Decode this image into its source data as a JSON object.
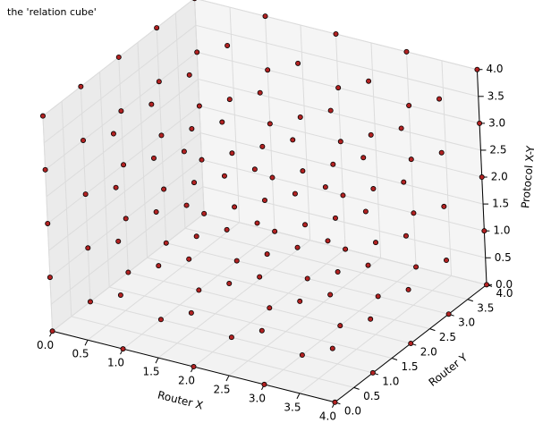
{
  "chart_data": {
    "type": "scatter3d",
    "title": "the 'relation cube'",
    "xlabel": "Router X",
    "ylabel": "Router Y",
    "zlabel": "Protocol X-Y",
    "color": "#b22222",
    "edgecolor": "#000000",
    "xlim": [
      0,
      4
    ],
    "ylim": [
      0,
      4
    ],
    "zlim": [
      0,
      4
    ],
    "xticks": [
      {
        "value": 0,
        "label": "0.0"
      },
      {
        "value": 0.5,
        "label": "0.5"
      },
      {
        "value": 1,
        "label": "1.0"
      },
      {
        "value": 1.5,
        "label": "1.5"
      },
      {
        "value": 2,
        "label": "2.0"
      },
      {
        "value": 2.5,
        "label": "2.5"
      },
      {
        "value": 3,
        "label": "3.0"
      },
      {
        "value": 3.5,
        "label": "3.5"
      },
      {
        "value": 4,
        "label": "4.0"
      }
    ],
    "yticks": [
      {
        "value": 0,
        "label": "0.0"
      },
      {
        "value": 0.5,
        "label": "0.5"
      },
      {
        "value": 1,
        "label": "1.0"
      },
      {
        "value": 1.5,
        "label": "1.5"
      },
      {
        "value": 2,
        "label": "2.0"
      },
      {
        "value": 2.5,
        "label": "2.5"
      },
      {
        "value": 3,
        "label": "3.0"
      },
      {
        "value": 3.5,
        "label": "3.5"
      },
      {
        "value": 4,
        "label": "4.0"
      }
    ],
    "zticks": [
      {
        "value": 0,
        "label": "0.0"
      },
      {
        "value": 0.5,
        "label": "0.5"
      },
      {
        "value": 1,
        "label": "1.0"
      },
      {
        "value": 1.5,
        "label": "1.5"
      },
      {
        "value": 2,
        "label": "2.0"
      },
      {
        "value": 2.5,
        "label": "2.5"
      },
      {
        "value": 3,
        "label": "3.0"
      },
      {
        "value": 3.5,
        "label": "3.5"
      },
      {
        "value": 4,
        "label": "4.0"
      }
    ],
    "grid": true,
    "x": [
      0,
      0,
      0,
      0,
      0,
      0,
      0,
      0,
      0,
      0,
      0,
      0,
      0,
      0,
      0,
      0,
      0,
      0,
      0,
      0,
      0,
      0,
      0,
      0,
      0,
      1,
      1,
      1,
      1,
      1,
      1,
      1,
      1,
      1,
      1,
      1,
      1,
      1,
      1,
      1,
      1,
      1,
      1,
      1,
      1,
      1,
      1,
      1,
      1,
      1,
      2,
      2,
      2,
      2,
      2,
      2,
      2,
      2,
      2,
      2,
      2,
      2,
      2,
      2,
      2,
      2,
      2,
      2,
      2,
      2,
      2,
      2,
      2,
      2,
      2,
      3,
      3,
      3,
      3,
      3,
      3,
      3,
      3,
      3,
      3,
      3,
      3,
      3,
      3,
      3,
      3,
      3,
      3,
      3,
      3,
      3,
      3,
      3,
      3,
      3,
      4,
      4,
      4,
      4,
      4,
      4,
      4,
      4,
      4,
      4,
      4,
      4,
      4,
      4,
      4,
      4,
      4,
      4,
      4,
      4,
      4,
      4,
      4,
      4,
      4
    ],
    "y": [
      0,
      0,
      0,
      0,
      0,
      1,
      1,
      1,
      1,
      1,
      2,
      2,
      2,
      2,
      2,
      3,
      3,
      3,
      3,
      3,
      4,
      4,
      4,
      4,
      4,
      0,
      0,
      0,
      0,
      0,
      1,
      1,
      1,
      1,
      1,
      2,
      2,
      2,
      2,
      2,
      3,
      3,
      3,
      3,
      3,
      4,
      4,
      4,
      4,
      4,
      0,
      0,
      0,
      0,
      0,
      1,
      1,
      1,
      1,
      1,
      2,
      2,
      2,
      2,
      2,
      3,
      3,
      3,
      3,
      3,
      4,
      4,
      4,
      4,
      4,
      0,
      0,
      0,
      0,
      0,
      1,
      1,
      1,
      1,
      1,
      2,
      2,
      2,
      2,
      2,
      3,
      3,
      3,
      3,
      3,
      4,
      4,
      4,
      4,
      4,
      0,
      0,
      0,
      0,
      0,
      1,
      1,
      1,
      1,
      1,
      2,
      2,
      2,
      2,
      2,
      3,
      3,
      3,
      3,
      3,
      4,
      4,
      4,
      4,
      4
    ],
    "z": [
      0,
      1,
      2,
      3,
      4,
      0,
      1,
      2,
      3,
      4,
      0,
      1,
      2,
      3,
      4,
      0,
      1,
      2,
      3,
      4,
      0,
      1,
      2,
      3,
      4,
      0,
      1,
      2,
      3,
      4,
      0,
      1,
      2,
      3,
      4,
      0,
      1,
      2,
      3,
      4,
      0,
      1,
      2,
      3,
      4,
      0,
      1,
      2,
      3,
      4,
      0,
      1,
      2,
      3,
      4,
      0,
      1,
      2,
      3,
      4,
      0,
      1,
      2,
      3,
      4,
      0,
      1,
      2,
      3,
      4,
      0,
      1,
      2,
      3,
      4,
      0,
      1,
      2,
      3,
      4,
      0,
      1,
      2,
      3,
      4,
      0,
      1,
      2,
      3,
      4,
      0,
      1,
      2,
      3,
      4,
      0,
      1,
      2,
      3,
      4,
      0,
      1,
      2,
      3,
      4,
      0,
      1,
      2,
      3,
      4,
      0,
      1,
      2,
      3,
      4,
      0,
      1,
      2,
      3,
      4,
      0,
      1,
      2,
      3,
      4
    ]
  }
}
